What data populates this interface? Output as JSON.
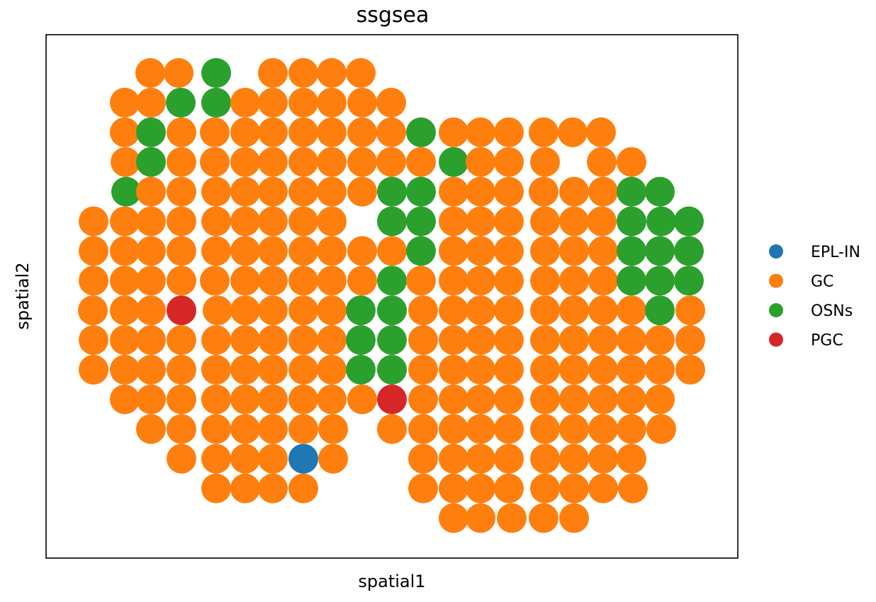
{
  "chart_data": {
    "type": "scatter",
    "title": "ssgsea",
    "xlabel": "spatial1",
    "ylabel": "spatial2",
    "xticks": [],
    "yticks": [],
    "grid": false,
    "legend_position": "right",
    "legend": [
      "EPL-IN",
      "GC",
      "OSNs",
      "PGC"
    ],
    "colors": {
      "EPL-IN": "#1f77b4",
      "GC": "#ff7f0e",
      "OSNs": "#2ca02c",
      "PGC": "#d62728"
    },
    "rows": [
      {
        "y": 1,
        "cells": [
          [
            212,
            "GC"
          ],
          [
            252,
            "GC"
          ],
          [
            305,
            "OSNs"
          ],
          [
            385,
            "GC"
          ],
          [
            428,
            "GC"
          ],
          [
            468,
            "GC"
          ],
          [
            509,
            "GC"
          ]
        ]
      },
      {
        "y": 2,
        "cells": [
          [
            176,
            "GC"
          ],
          [
            213,
            "GC"
          ],
          [
            255,
            "OSNs"
          ],
          [
            305,
            "OSNs"
          ],
          [
            346,
            "GC"
          ],
          [
            385,
            "GC"
          ],
          [
            428,
            "GC"
          ],
          [
            468,
            "GC"
          ],
          [
            511,
            "GC"
          ],
          [
            552,
            "GC"
          ]
        ]
      },
      {
        "y": 3,
        "cells": [
          [
            176,
            "GC"
          ],
          [
            213,
            "OSNs"
          ],
          [
            256,
            "GC"
          ],
          [
            303,
            "GC"
          ],
          [
            346,
            "GC"
          ],
          [
            385,
            "GC"
          ],
          [
            428,
            "GC"
          ],
          [
            468,
            "GC"
          ],
          [
            511,
            "GC"
          ],
          [
            552,
            "GC"
          ],
          [
            594,
            "OSNs"
          ],
          [
            640,
            "GC"
          ],
          [
            678,
            "GC"
          ],
          [
            718,
            "GC"
          ],
          [
            767,
            "GC"
          ],
          [
            808,
            "GC"
          ],
          [
            848,
            "GC"
          ]
        ]
      },
      {
        "y": 4,
        "cells": [
          [
            177,
            "GC"
          ],
          [
            213,
            "OSNs"
          ],
          [
            256,
            "GC"
          ],
          [
            303,
            "GC"
          ],
          [
            346,
            "GC"
          ],
          [
            385,
            "GC"
          ],
          [
            428,
            "GC"
          ],
          [
            468,
            "GC"
          ],
          [
            511,
            "GC"
          ],
          [
            552,
            "GC"
          ],
          [
            594,
            "GC"
          ],
          [
            640,
            "OSNs"
          ],
          [
            678,
            "GC"
          ],
          [
            718,
            "GC"
          ],
          [
            769,
            "GC"
          ],
          [
            849,
            "GC"
          ],
          [
            891,
            "GC"
          ]
        ]
      },
      {
        "y": 5,
        "cells": [
          [
            178,
            "OSNs"
          ],
          [
            213,
            "GC"
          ],
          [
            256,
            "GC"
          ],
          [
            305,
            "GC"
          ],
          [
            346,
            "GC"
          ],
          [
            385,
            "GC"
          ],
          [
            428,
            "GC"
          ],
          [
            468,
            "GC"
          ],
          [
            511,
            "GC"
          ],
          [
            553,
            "OSNs"
          ],
          [
            594,
            "OSNs"
          ],
          [
            640,
            "GC"
          ],
          [
            678,
            "GC"
          ],
          [
            718,
            "GC"
          ],
          [
            767,
            "GC"
          ],
          [
            810,
            "GC"
          ],
          [
            851,
            "GC"
          ],
          [
            891,
            "OSNs"
          ],
          [
            931,
            "OSNs"
          ]
        ]
      },
      {
        "y": 6,
        "cells": [
          [
            132,
            "GC"
          ],
          [
            176,
            "GC"
          ],
          [
            213,
            "GC"
          ],
          [
            256,
            "GC"
          ],
          [
            305,
            "GC"
          ],
          [
            346,
            "GC"
          ],
          [
            385,
            "GC"
          ],
          [
            428,
            "GC"
          ],
          [
            468,
            "GC"
          ],
          [
            553,
            "OSNs"
          ],
          [
            594,
            "OSNs"
          ],
          [
            640,
            "GC"
          ],
          [
            678,
            "GC"
          ],
          [
            718,
            "GC"
          ],
          [
            769,
            "GC"
          ],
          [
            810,
            "GC"
          ],
          [
            849,
            "GC"
          ],
          [
            891,
            "OSNs"
          ],
          [
            933,
            "OSNs"
          ],
          [
            972,
            "OSNs"
          ]
        ]
      },
      {
        "y": 7,
        "cells": [
          [
            132,
            "GC"
          ],
          [
            176,
            "GC"
          ],
          [
            213,
            "GC"
          ],
          [
            256,
            "GC"
          ],
          [
            305,
            "GC"
          ],
          [
            346,
            "GC"
          ],
          [
            385,
            "GC"
          ],
          [
            428,
            "GC"
          ],
          [
            468,
            "GC"
          ],
          [
            511,
            "GC"
          ],
          [
            553,
            "GC"
          ],
          [
            594,
            "OSNs"
          ],
          [
            640,
            "GC"
          ],
          [
            678,
            "GC"
          ],
          [
            718,
            "GC"
          ],
          [
            769,
            "GC"
          ],
          [
            810,
            "GC"
          ],
          [
            851,
            "GC"
          ],
          [
            891,
            "OSNs"
          ],
          [
            931,
            "OSNs"
          ],
          [
            972,
            "OSNs"
          ]
        ]
      },
      {
        "y": 8,
        "cells": [
          [
            132,
            "GC"
          ],
          [
            176,
            "GC"
          ],
          [
            213,
            "GC"
          ],
          [
            256,
            "GC"
          ],
          [
            303,
            "GC"
          ],
          [
            346,
            "GC"
          ],
          [
            385,
            "GC"
          ],
          [
            428,
            "GC"
          ],
          [
            468,
            "GC"
          ],
          [
            511,
            "GC"
          ],
          [
            553,
            "OSNs"
          ],
          [
            594,
            "GC"
          ],
          [
            640,
            "GC"
          ],
          [
            678,
            "GC"
          ],
          [
            718,
            "GC"
          ],
          [
            769,
            "GC"
          ],
          [
            810,
            "GC"
          ],
          [
            851,
            "GC"
          ],
          [
            891,
            "OSNs"
          ],
          [
            931,
            "OSNs"
          ],
          [
            972,
            "OSNs"
          ]
        ]
      },
      {
        "y": 9,
        "cells": [
          [
            131,
            "GC"
          ],
          [
            176,
            "GC"
          ],
          [
            213,
            "GC"
          ],
          [
            256,
            "PGC"
          ],
          [
            307,
            "GC"
          ],
          [
            346,
            "GC"
          ],
          [
            385,
            "GC"
          ],
          [
            428,
            "GC"
          ],
          [
            468,
            "GC"
          ],
          [
            509,
            "OSNs"
          ],
          [
            553,
            "OSNs"
          ],
          [
            597,
            "GC"
          ],
          [
            640,
            "GC"
          ],
          [
            678,
            "GC"
          ],
          [
            718,
            "GC"
          ],
          [
            769,
            "GC"
          ],
          [
            810,
            "GC"
          ],
          [
            851,
            "GC"
          ],
          [
            891,
            "GC"
          ],
          [
            931,
            "OSNs"
          ],
          [
            974,
            "GC"
          ]
        ]
      },
      {
        "y": 10,
        "cells": [
          [
            132,
            "GC"
          ],
          [
            176,
            "GC"
          ],
          [
            213,
            "GC"
          ],
          [
            256,
            "GC"
          ],
          [
            305,
            "GC"
          ],
          [
            346,
            "GC"
          ],
          [
            385,
            "GC"
          ],
          [
            428,
            "GC"
          ],
          [
            468,
            "GC"
          ],
          [
            509,
            "OSNs"
          ],
          [
            553,
            "OSNs"
          ],
          [
            597,
            "GC"
          ],
          [
            640,
            "GC"
          ],
          [
            678,
            "GC"
          ],
          [
            718,
            "GC"
          ],
          [
            769,
            "GC"
          ],
          [
            810,
            "GC"
          ],
          [
            851,
            "GC"
          ],
          [
            891,
            "GC"
          ],
          [
            931,
            "GC"
          ],
          [
            974,
            "GC"
          ]
        ]
      },
      {
        "y": 11,
        "cells": [
          [
            132,
            "GC"
          ],
          [
            176,
            "GC"
          ],
          [
            213,
            "GC"
          ],
          [
            256,
            "GC"
          ],
          [
            305,
            "GC"
          ],
          [
            346,
            "GC"
          ],
          [
            385,
            "GC"
          ],
          [
            428,
            "GC"
          ],
          [
            468,
            "GC"
          ],
          [
            509,
            "OSNs"
          ],
          [
            553,
            "OSNs"
          ],
          [
            597,
            "GC"
          ],
          [
            640,
            "GC"
          ],
          [
            678,
            "GC"
          ],
          [
            718,
            "GC"
          ],
          [
            769,
            "GC"
          ],
          [
            810,
            "GC"
          ],
          [
            851,
            "GC"
          ],
          [
            891,
            "GC"
          ],
          [
            931,
            "GC"
          ],
          [
            974,
            "GC"
          ]
        ]
      },
      {
        "y": 12,
        "cells": [
          [
            176,
            "GC"
          ],
          [
            213,
            "GC"
          ],
          [
            256,
            "GC"
          ],
          [
            305,
            "GC"
          ],
          [
            346,
            "GC"
          ],
          [
            385,
            "GC"
          ],
          [
            428,
            "GC"
          ],
          [
            468,
            "GC"
          ],
          [
            511,
            "GC"
          ],
          [
            553,
            "PGC"
          ],
          [
            597,
            "GC"
          ],
          [
            640,
            "GC"
          ],
          [
            678,
            "GC"
          ],
          [
            718,
            "GC"
          ],
          [
            769,
            "GC"
          ],
          [
            810,
            "GC"
          ],
          [
            851,
            "GC"
          ],
          [
            891,
            "GC"
          ],
          [
            931,
            "GC"
          ]
        ]
      },
      {
        "y": 13,
        "cells": [
          [
            213,
            "GC"
          ],
          [
            256,
            "GC"
          ],
          [
            305,
            "GC"
          ],
          [
            346,
            "GC"
          ],
          [
            385,
            "GC"
          ],
          [
            428,
            "GC"
          ],
          [
            470,
            "GC"
          ],
          [
            553,
            "GC"
          ],
          [
            597,
            "GC"
          ],
          [
            640,
            "GC"
          ],
          [
            678,
            "GC"
          ],
          [
            718,
            "GC"
          ],
          [
            769,
            "GC"
          ],
          [
            810,
            "GC"
          ],
          [
            851,
            "GC"
          ],
          [
            891,
            "GC"
          ],
          [
            933,
            "GC"
          ]
        ]
      },
      {
        "y": 14,
        "cells": [
          [
            256,
            "GC"
          ],
          [
            305,
            "GC"
          ],
          [
            346,
            "GC"
          ],
          [
            385,
            "GC"
          ],
          [
            428,
            "EPL-IN"
          ],
          [
            470,
            "GC"
          ],
          [
            597,
            "GC"
          ],
          [
            640,
            "GC"
          ],
          [
            678,
            "GC"
          ],
          [
            718,
            "GC"
          ],
          [
            769,
            "GC"
          ],
          [
            810,
            "GC"
          ],
          [
            851,
            "GC"
          ],
          [
            891,
            "GC"
          ]
        ]
      },
      {
        "y": 15,
        "cells": [
          [
            305,
            "GC"
          ],
          [
            346,
            "GC"
          ],
          [
            385,
            "GC"
          ],
          [
            428,
            "GC"
          ],
          [
            597,
            "GC"
          ],
          [
            640,
            "GC"
          ],
          [
            678,
            "GC"
          ],
          [
            718,
            "GC"
          ],
          [
            769,
            "GC"
          ],
          [
            810,
            "GC"
          ],
          [
            851,
            "GC"
          ],
          [
            893,
            "GC"
          ]
        ]
      },
      {
        "y": 16,
        "cells": [
          [
            640,
            "GC"
          ],
          [
            678,
            "GC"
          ],
          [
            722,
            "GC"
          ],
          [
            767,
            "GC"
          ],
          [
            810,
            "GC"
          ]
        ]
      }
    ]
  }
}
